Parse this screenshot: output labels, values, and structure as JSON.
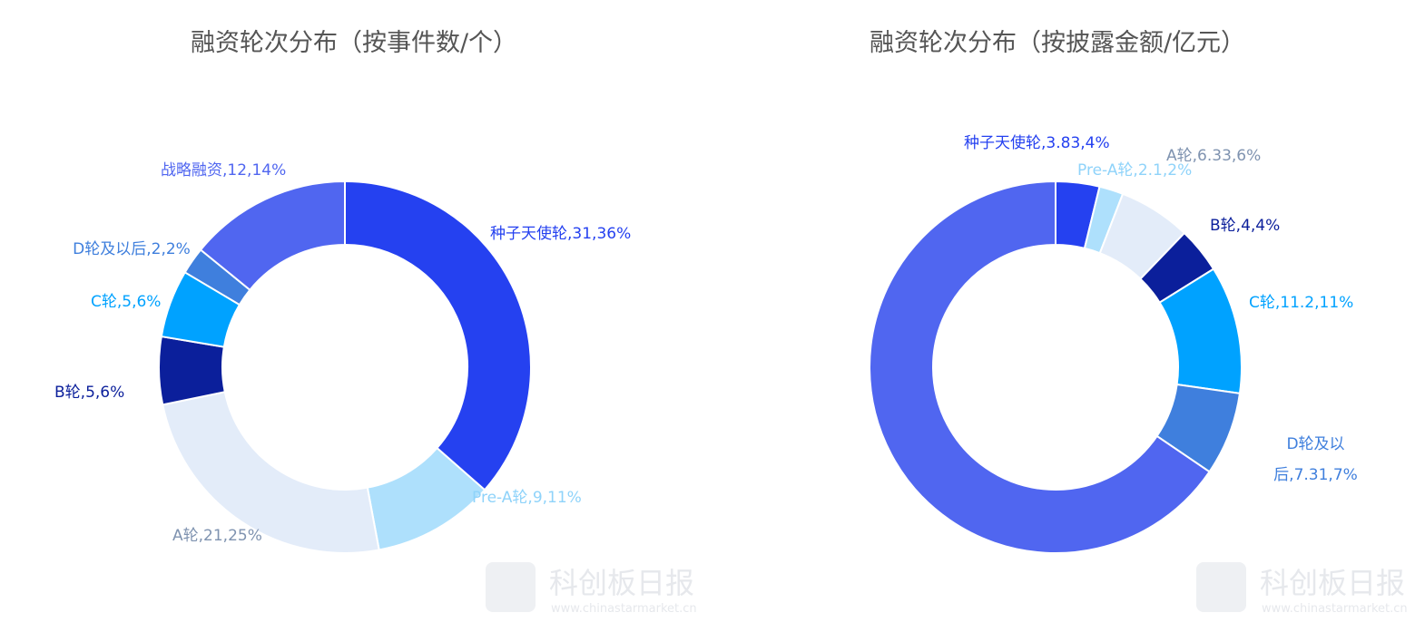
{
  "chart_data": [
    {
      "type": "donut",
      "title": "融资轮次分布（按事件数/个）",
      "values": [
        31,
        9,
        21,
        5,
        5,
        2,
        12
      ],
      "value_labels": [
        "种子天使轮,31,36%",
        "Pre-A轮,9,11%",
        "A轮,21,25%",
        "B轮,5,6%",
        "C轮,5,6%",
        "D轮及以后,2,2%",
        "战略融资,12,14%"
      ],
      "colors": [
        "#2541f0",
        "#aee0fc",
        "#e3ecf9",
        "#0b1f9b",
        "#00a2ff",
        "#3f7fdd",
        "#5066f0"
      ],
      "label_colors": [
        "#2541f0",
        "#8fd3fa",
        "#7f93b0",
        "#0b1f9b",
        "#00a2ff",
        "#3f7fdd",
        "#5066f0"
      ]
    },
    {
      "type": "donut",
      "title": "融资轮次分布（按披露金额/亿元）",
      "values": [
        3.83,
        2.1,
        6.33,
        4,
        11.2,
        7.31,
        66
      ],
      "value_labels": [
        "种子天使轮,3.83,4%",
        "Pre-A轮,2.1,2%",
        "A轮,6.33,6%",
        "B轮,4,4%",
        "C轮,11.2,11%",
        "D轮及以后,7.31,7%",
        null
      ],
      "colors": [
        "#2541f0",
        "#aee0fc",
        "#e3ecf9",
        "#0b1f9b",
        "#00a2ff",
        "#3f7fdd",
        "#5066f0"
      ],
      "label_colors": [
        "#2541f0",
        "#8fd3fa",
        "#7f93b0",
        "#0b1f9b",
        "#00a2ff",
        "#3f7fdd",
        "#5066f0"
      ]
    }
  ],
  "watermark": {
    "name": "科创板日报",
    "url": "www.chinastarmarket.cn"
  }
}
